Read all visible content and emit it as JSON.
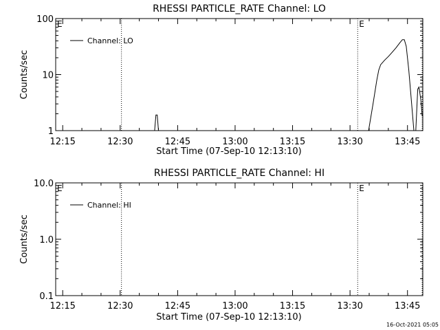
{
  "footer": {
    "timestamp": "16-Oct-2021 05:05"
  },
  "chart_data": [
    {
      "type": "line",
      "title": "RHESSI PARTICLE_RATE Channel: LO",
      "xlabel": "Start Time (07-Sep-10 12:13:10)",
      "ylabel": "Counts/sec",
      "y_scale": "log",
      "ylim": [
        1,
        100
      ],
      "xlim": [
        "12:13:10",
        "13:49:00"
      ],
      "x_ticks": [
        "12:15",
        "12:30",
        "12:45",
        "13:00",
        "13:15",
        "13:30",
        "13:45"
      ],
      "y_ticks": [
        "1",
        "10",
        "100"
      ],
      "legend": {
        "placement": "top-left",
        "entries": [
          "Channel: LO"
        ]
      },
      "markers": [
        {
          "time": "12:13:10",
          "label": "E"
        },
        {
          "time": "12:30:20",
          "label": ""
        },
        {
          "time": "13:32:00",
          "label": "E"
        },
        {
          "time": "13:48:50",
          "label": ""
        }
      ],
      "series": [
        {
          "name": "Channel: LO",
          "segments": [
            [
              [
                "12:39:00",
                1
              ],
              [
                "12:39:20",
                1.9
              ],
              [
                "12:39:40",
                1.9
              ],
              [
                "12:40:00",
                1
              ]
            ],
            [
              [
                "13:34:50",
                1
              ],
              [
                "13:36:00",
                3
              ],
              [
                "13:37:00",
                8
              ],
              [
                "13:37:30",
                12
              ],
              [
                "13:38:00",
                15
              ],
              [
                "13:39:00",
                18
              ],
              [
                "13:40:00",
                21
              ],
              [
                "13:41:00",
                25
              ],
              [
                "13:42:00",
                30
              ],
              [
                "13:43:00",
                37
              ],
              [
                "13:43:40",
                42
              ],
              [
                "13:44:10",
                42
              ],
              [
                "13:44:40",
                32
              ],
              [
                "13:45:20",
                12
              ],
              [
                "13:46:00",
                3.5
              ],
              [
                "13:46:40",
                1
              ]
            ],
            [
              [
                "13:47:10",
                1
              ],
              [
                "13:47:40",
                5.5
              ],
              [
                "13:48:00",
                6
              ],
              [
                "13:48:30",
                3.5
              ],
              [
                "13:48:50",
                1.8
              ]
            ]
          ]
        }
      ]
    },
    {
      "type": "line",
      "title": "RHESSI PARTICLE_RATE Channel: HI",
      "xlabel": "Start Time (07-Sep-10 12:13:10)",
      "ylabel": "Counts/sec",
      "y_scale": "log",
      "ylim": [
        0.1,
        10
      ],
      "xlim": [
        "12:13:10",
        "13:49:00"
      ],
      "x_ticks": [
        "12:15",
        "12:30",
        "12:45",
        "13:00",
        "13:15",
        "13:30",
        "13:45"
      ],
      "y_ticks": [
        "0.1",
        "1.0",
        "10.0"
      ],
      "legend": {
        "placement": "top-left",
        "entries": [
          "Channel: HI"
        ]
      },
      "markers": [
        {
          "time": "12:13:10",
          "label": "E"
        },
        {
          "time": "12:30:20",
          "label": ""
        },
        {
          "time": "13:32:00",
          "label": "E"
        },
        {
          "time": "13:48:50",
          "label": ""
        }
      ],
      "series": [
        {
          "name": "Channel: HI",
          "segments": []
        }
      ]
    }
  ]
}
